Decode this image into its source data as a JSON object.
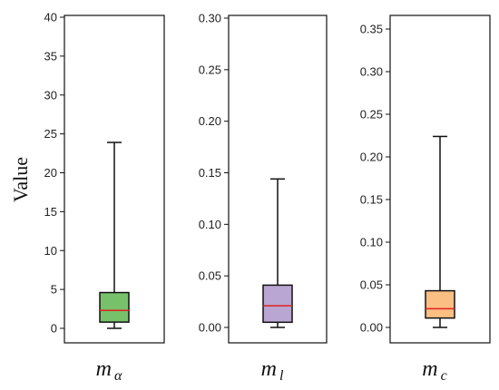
{
  "chart_data": {
    "type": "boxplot",
    "ylabel": "Value",
    "median_color": "#e02020",
    "panels": [
      {
        "label_main": "m",
        "label_sub": "α",
        "color": "#77c16a",
        "ylim": [
          0,
          40
        ],
        "yticks": [
          0,
          5,
          10,
          15,
          20,
          25,
          30,
          35,
          40
        ],
        "tick_labels": [
          "0",
          "5",
          "10",
          "15",
          "20",
          "25",
          "30",
          "35",
          "40"
        ],
        "whisker_low": 0.0,
        "q1": 0.8,
        "median": 2.3,
        "q3": 4.6,
        "whisker_high": 23.9
      },
      {
        "label_main": "m",
        "label_sub": "l",
        "color": "#b9a6d3",
        "ylim": [
          0,
          0.3
        ],
        "yticks": [
          0,
          0.05,
          0.1,
          0.15,
          0.2,
          0.25,
          0.3
        ],
        "tick_labels": [
          "0.00",
          "0.05",
          "0.10",
          "0.15",
          "0.20",
          "0.25",
          "0.30"
        ],
        "whisker_low": 0.0,
        "q1": 0.005,
        "median": 0.021,
        "q3": 0.041,
        "whisker_high": 0.144
      },
      {
        "label_main": "m",
        "label_sub": "c",
        "color": "#fcbf83",
        "ylim": [
          0,
          0.35
        ],
        "yticks": [
          0,
          0.05,
          0.1,
          0.15,
          0.2,
          0.25,
          0.3,
          0.35
        ],
        "tick_labels": [
          "0.00",
          "0.05",
          "0.10",
          "0.15",
          "0.20",
          "0.25",
          "0.30",
          "0.35"
        ],
        "whisker_low": 0.0,
        "q1": 0.011,
        "median": 0.022,
        "q3": 0.043,
        "whisker_high": 0.224
      }
    ]
  }
}
